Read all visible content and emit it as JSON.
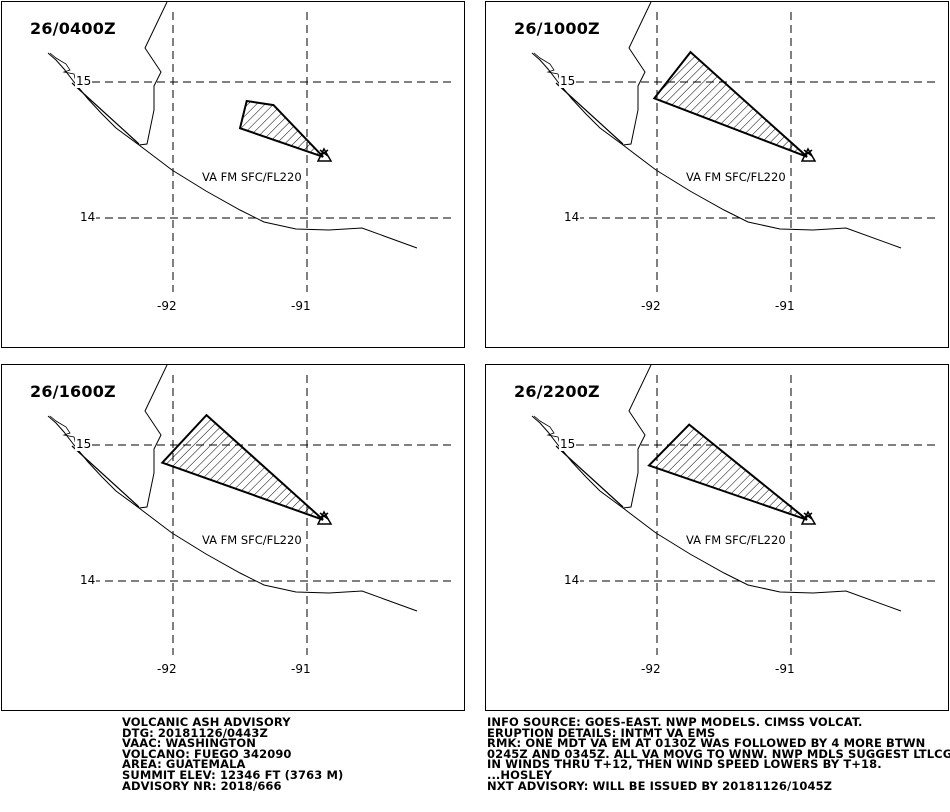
{
  "panels": [
    {
      "id": "p1",
      "valid_time": "26/0400Z",
      "ash_label": "VA FM SFC/FL220",
      "ash_polygon": [
        [
          -91.45,
          14.86
        ],
        [
          -91.25,
          14.83
        ],
        [
          -90.88,
          14.45
        ],
        [
          -91.5,
          14.66
        ]
      ]
    },
    {
      "id": "p2",
      "valid_time": "26/1000Z",
      "ash_label": "VA FM SFC/FL220",
      "ash_polygon": [
        [
          -91.75,
          15.22
        ],
        [
          -90.88,
          14.45
        ],
        [
          -92.02,
          14.88
        ]
      ]
    },
    {
      "id": "p3",
      "valid_time": "26/1600Z",
      "ash_label": "VA FM SFC/FL220",
      "ash_polygon": [
        [
          -91.75,
          15.22
        ],
        [
          -90.88,
          14.45
        ],
        [
          -92.08,
          14.87
        ]
      ]
    },
    {
      "id": "p4",
      "valid_time": "26/2200Z",
      "ash_label": "VA FM SFC/FL220",
      "ash_polygon": [
        [
          -91.76,
          15.15
        ],
        [
          -90.88,
          14.45
        ],
        [
          -92.06,
          14.85
        ]
      ]
    }
  ],
  "map": {
    "lat_labels": [
      "15",
      "14"
    ],
    "lon_labels": [
      "-92",
      "-91"
    ],
    "volcano_symbol": "volcano-triangle-icon",
    "colors": {
      "line": "#000000",
      "background": "#ffffff"
    }
  },
  "advisory_left": {
    "lines": [
      "VOLCANIC ASH ADVISORY",
      "DTG: 20181126/0443Z",
      "VAAC: WASHINGTON",
      "VOLCANO: FUEGO 342090",
      "AREA: GUATEMALA",
      "SUMMIT ELEV: 12346 FT (3763 M)",
      "ADVISORY NR: 2018/666"
    ]
  },
  "advisory_right": {
    "lines": [
      "INFO SOURCE: GOES-EAST. NWP MODELS. CIMSS VOLCAT.",
      "ERUPTION DETAILS: INTMT VA EMS",
      "RMK: ONE MDT VA EM AT 0130Z WAS FOLLOWED BY 4 MORE BTWN",
      "0245Z AND 0345Z. ALL VA MOVG TO WNW. NWP MDLS SUGGEST LTLCG",
      "IN WINDS THRU T+12, THEN WIND SPEED LOWERS BY T+18.",
      "...HOSLEY",
      "NXT ADVISORY: WILL BE ISSUED BY 20181126/1045Z"
    ]
  }
}
